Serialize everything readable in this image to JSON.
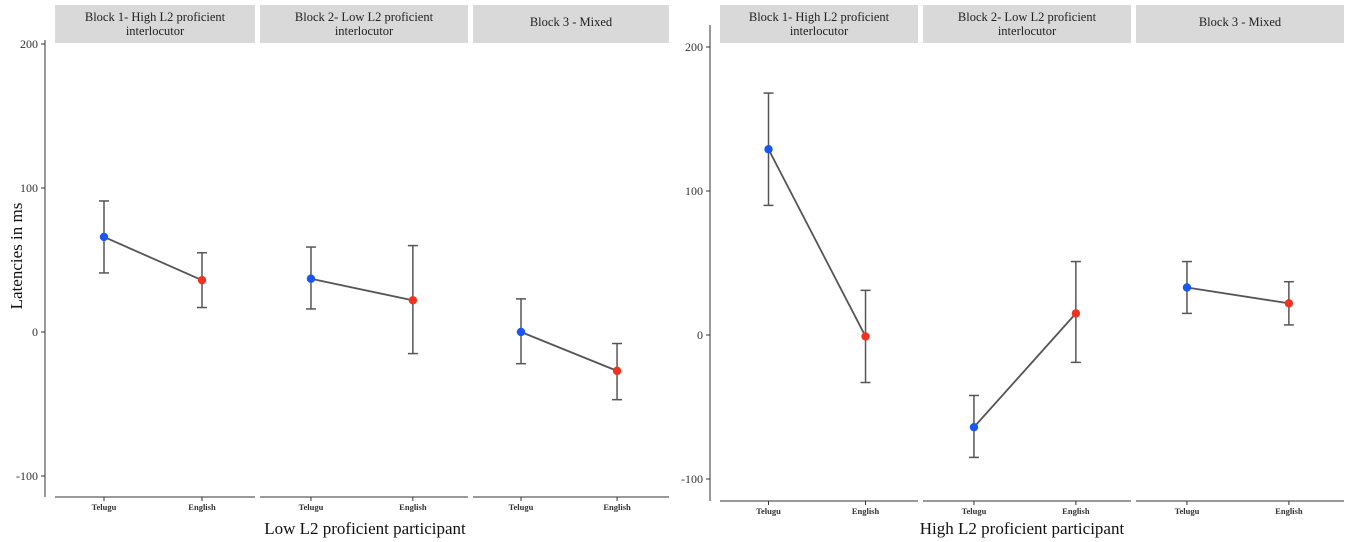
{
  "chart_data": [
    {
      "type": "line",
      "xlabel": "Low L2 proficient participant",
      "ylabel": "Latencies in ms",
      "ylim": [
        -110,
        210
      ],
      "yticks": [
        -100,
        0,
        100,
        200
      ],
      "categories": [
        "Telugu",
        "English"
      ],
      "colors": {
        "Telugu": "#1a56f0",
        "English": "#f0321e"
      },
      "panels": [
        {
          "title_lines": [
            "Block 1- High L2 proficient",
            "interlocutor"
          ],
          "points": [
            {
              "x": "Telugu",
              "y": 66,
              "ymin": 41,
              "ymax": 91
            },
            {
              "x": "English",
              "y": 36,
              "ymin": 17,
              "ymax": 55
            }
          ]
        },
        {
          "title_lines": [
            "Block 2- Low L2 proficient",
            "interlocutor"
          ],
          "points": [
            {
              "x": "Telugu",
              "y": 37,
              "ymin": 16,
              "ymax": 59
            },
            {
              "x": "English",
              "y": 22,
              "ymin": -15,
              "ymax": 60
            }
          ]
        },
        {
          "title_lines": [
            "Block 3 - Mixed"
          ],
          "points": [
            {
              "x": "Telugu",
              "y": 0,
              "ymin": -22,
              "ymax": 23
            },
            {
              "x": "English",
              "y": -27,
              "ymin": -47,
              "ymax": -8
            }
          ]
        }
      ]
    },
    {
      "type": "line",
      "xlabel": "High L2 proficient participant",
      "ylabel": "",
      "ylim": [
        -105,
        215
      ],
      "yticks": [
        -100,
        0,
        100,
        200
      ],
      "categories": [
        "Telugu",
        "English"
      ],
      "colors": {
        "Telugu": "#1a56f0",
        "English": "#f0321e"
      },
      "panels": [
        {
          "title_lines": [
            "Block 1- High L2 proficient",
            "interlocutor"
          ],
          "points": [
            {
              "x": "Telugu",
              "y": 129,
              "ymin": 90,
              "ymax": 168
            },
            {
              "x": "English",
              "y": -1,
              "ymin": -33,
              "ymax": 31
            }
          ]
        },
        {
          "title_lines": [
            "Block 2- Low L2 proficient",
            "interlocutor"
          ],
          "points": [
            {
              "x": "Telugu",
              "y": -64,
              "ymin": -85,
              "ymax": -42
            },
            {
              "x": "English",
              "y": 15,
              "ymin": -19,
              "ymax": 51
            }
          ]
        },
        {
          "title_lines": [
            "Block 3 - Mixed"
          ],
          "points": [
            {
              "x": "Telugu",
              "y": 33,
              "ymin": 15,
              "ymax": 51
            },
            {
              "x": "English",
              "y": 22,
              "ymin": 7,
              "ymax": 37
            }
          ]
        }
      ]
    }
  ]
}
